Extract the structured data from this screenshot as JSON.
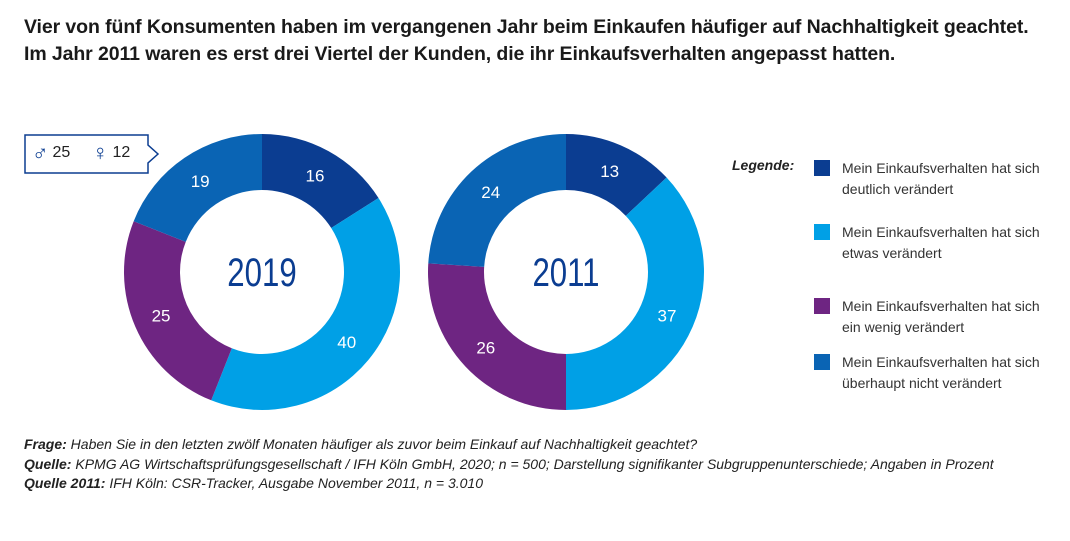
{
  "headline": "Vier von fünf Konsumenten haben im vergangenen Jahr beim Einkaufen häufiger auf Nachhaltigkeit geachtet. Im Jahr 2011 waren es erst drei Viertel der Kunden, die ihr Einkaufsverhalten angepasst hatten.",
  "gender_box": {
    "male_symbol": "♂",
    "male_value": "25",
    "female_symbol": "♀",
    "female_value": "12"
  },
  "legend": {
    "title": "Legende:",
    "items": [
      {
        "label": "Mein Einkaufsverhalten hat sich deutlich verändert",
        "color": "#0b3d91"
      },
      {
        "label": "Mein Einkaufsverhalten hat sich etwas verändert",
        "color": "#00a0e6"
      },
      {
        "label": "Mein Einkaufsverhalten hat sich ein wenig verändert",
        "color": "#6e2582"
      },
      {
        "label": "Mein Einkaufsverhalten hat sich überhaupt nicht verändert",
        "color": "#0a64b4"
      }
    ]
  },
  "footer": {
    "frage_label": "Frage:",
    "frage_text": " Haben Sie in den letzten zwölf Monaten häufiger als zuvor beim Einkauf auf Nachhaltigkeit geachtet?",
    "quelle_label": "Quelle:",
    "quelle_text": " KPMG AG Wirtschaftsprüfungsgesellschaft / IFH Köln GmbH, 2020; n = 500; Darstellung signifikanter Subgruppenunterschiede; Angaben in Prozent",
    "quelle2011_label": "Quelle 2011:",
    "quelle2011_text": " IFH Köln: CSR-Tracker, Ausgabe November 2011, n = 3.010"
  },
  "chart_data": [
    {
      "type": "pie",
      "center_label": "2019",
      "categories": [
        "Mein Einkaufsverhalten hat sich deutlich verändert",
        "Mein Einkaufsverhalten hat sich etwas verändert",
        "Mein Einkaufsverhalten hat sich ein wenig verändert",
        "Mein Einkaufsverhalten hat sich überhaupt nicht verändert"
      ],
      "values": [
        16,
        40,
        25,
        19
      ],
      "colors": [
        "#0b3d91",
        "#00a0e6",
        "#6e2582",
        "#0a64b4"
      ]
    },
    {
      "type": "pie",
      "center_label": "2011",
      "categories": [
        "Mein Einkaufsverhalten hat sich deutlich verändert",
        "Mein Einkaufsverhalten hat sich etwas verändert",
        "Mein Einkaufsverhalten hat sich ein wenig verändert",
        "Mein Einkaufsverhalten hat sich überhaupt nicht verändert"
      ],
      "values": [
        13,
        37,
        26,
        24
      ],
      "colors": [
        "#0b3d91",
        "#00a0e6",
        "#6e2582",
        "#0a64b4"
      ]
    }
  ]
}
